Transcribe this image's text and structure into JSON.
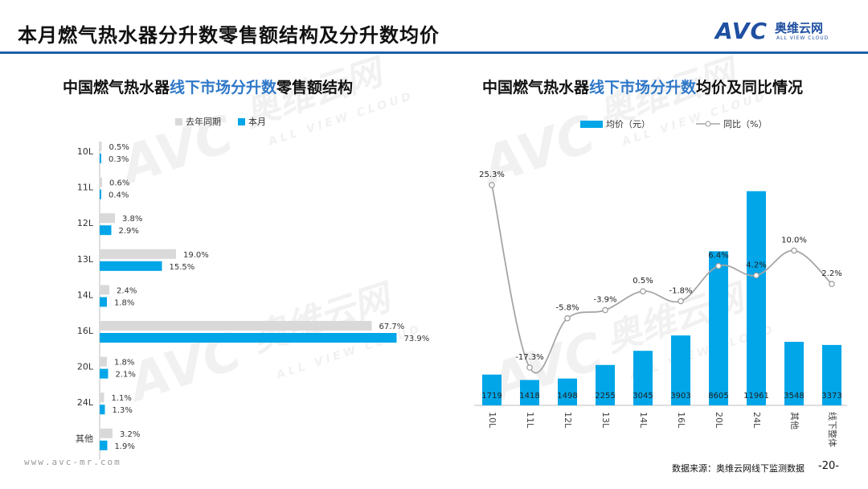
{
  "page": {
    "title": "本月燃气热水器分升数零售额结构及分升数均价",
    "logo_mark": "AVC",
    "logo_cn": "奥维云网",
    "logo_en": "ALL VIEW CLOUD",
    "footer_url": "www.avc-mr.com",
    "footer_source": "数据来源：奥维云网线下监测数据",
    "page_number": "-20-",
    "watermark_mark": "AVC",
    "watermark_cn": "奥维云网",
    "watermark_en": "ALL VIEW CLOUD"
  },
  "left_chart": {
    "title_pre": "中国燃气热水器",
    "title_hl": "线下市场分升数",
    "title_post": "零售额结构",
    "legend_prev": "去年同期",
    "legend_curr": "本月"
  },
  "right_chart": {
    "title_pre": "中国燃气热水器",
    "title_hl": "线下市场分升数",
    "title_post": "均价及同比情况",
    "legend_bar": "均价（元）",
    "legend_line": "同比（%）"
  },
  "colors": {
    "accent": "#1f5fa8",
    "bar_current": "#00a6e8",
    "bar_previous": "#d9d9d9",
    "line": "#a6a6a6",
    "title_highlight": "#2f78c8"
  },
  "chart_data": [
    {
      "type": "bar",
      "orientation": "horizontal",
      "categories": [
        "10L",
        "11L",
        "12L",
        "13L",
        "14L",
        "16L",
        "20L",
        "24L",
        "其他"
      ],
      "series": [
        {
          "name": "去年同期",
          "values": [
            0.5,
            0.6,
            3.8,
            19.0,
            2.4,
            67.7,
            1.8,
            1.1,
            3.2
          ],
          "labels": [
            "0.5%",
            "0.6%",
            "3.8%",
            "19.0%",
            "2.4%",
            "67.7%",
            "1.8%",
            "1.1%",
            "3.2%"
          ]
        },
        {
          "name": "本月",
          "values": [
            0.3,
            0.4,
            2.9,
            15.5,
            1.8,
            73.9,
            2.1,
            1.3,
            1.9
          ],
          "labels": [
            "0.3%",
            "0.4%",
            "2.9%",
            "15.5%",
            "1.8%",
            "73.9%",
            "2.1%",
            "1.3%",
            "1.9%"
          ]
        }
      ],
      "unit": "%",
      "grid": false
    },
    {
      "type": "bar",
      "combo_with": "line",
      "categories": [
        "10L",
        "11L",
        "12L",
        "13L",
        "14L",
        "16L",
        "20L",
        "24L",
        "其他",
        "线下整体"
      ],
      "series": [
        {
          "name": "均价（元）",
          "type": "bar",
          "values": [
            1719,
            1418,
            1498,
            2255,
            3045,
            3903,
            8605,
            11961,
            3548,
            3373
          ],
          "labels": [
            "1719",
            "1418",
            "1498",
            "2255",
            "3045",
            "3903",
            "8605",
            "11961",
            "3548",
            "3373"
          ]
        },
        {
          "name": "同比（%）",
          "type": "line",
          "values": [
            25.3,
            -17.3,
            -5.8,
            -3.9,
            0.5,
            -1.8,
            6.4,
            4.2,
            10.0,
            2.2
          ],
          "labels": [
            "25.3%",
            "-17.3%",
            "-5.8%",
            "-3.9%",
            "0.5%",
            "-1.8%",
            "6.4%",
            "4.2%",
            "10.0%",
            "2.2%"
          ]
        }
      ],
      "ylim_bar": [
        0,
        13000
      ],
      "ylim_line": [
        -25,
        30
      ],
      "grid": false,
      "legend_position": "top"
    }
  ]
}
